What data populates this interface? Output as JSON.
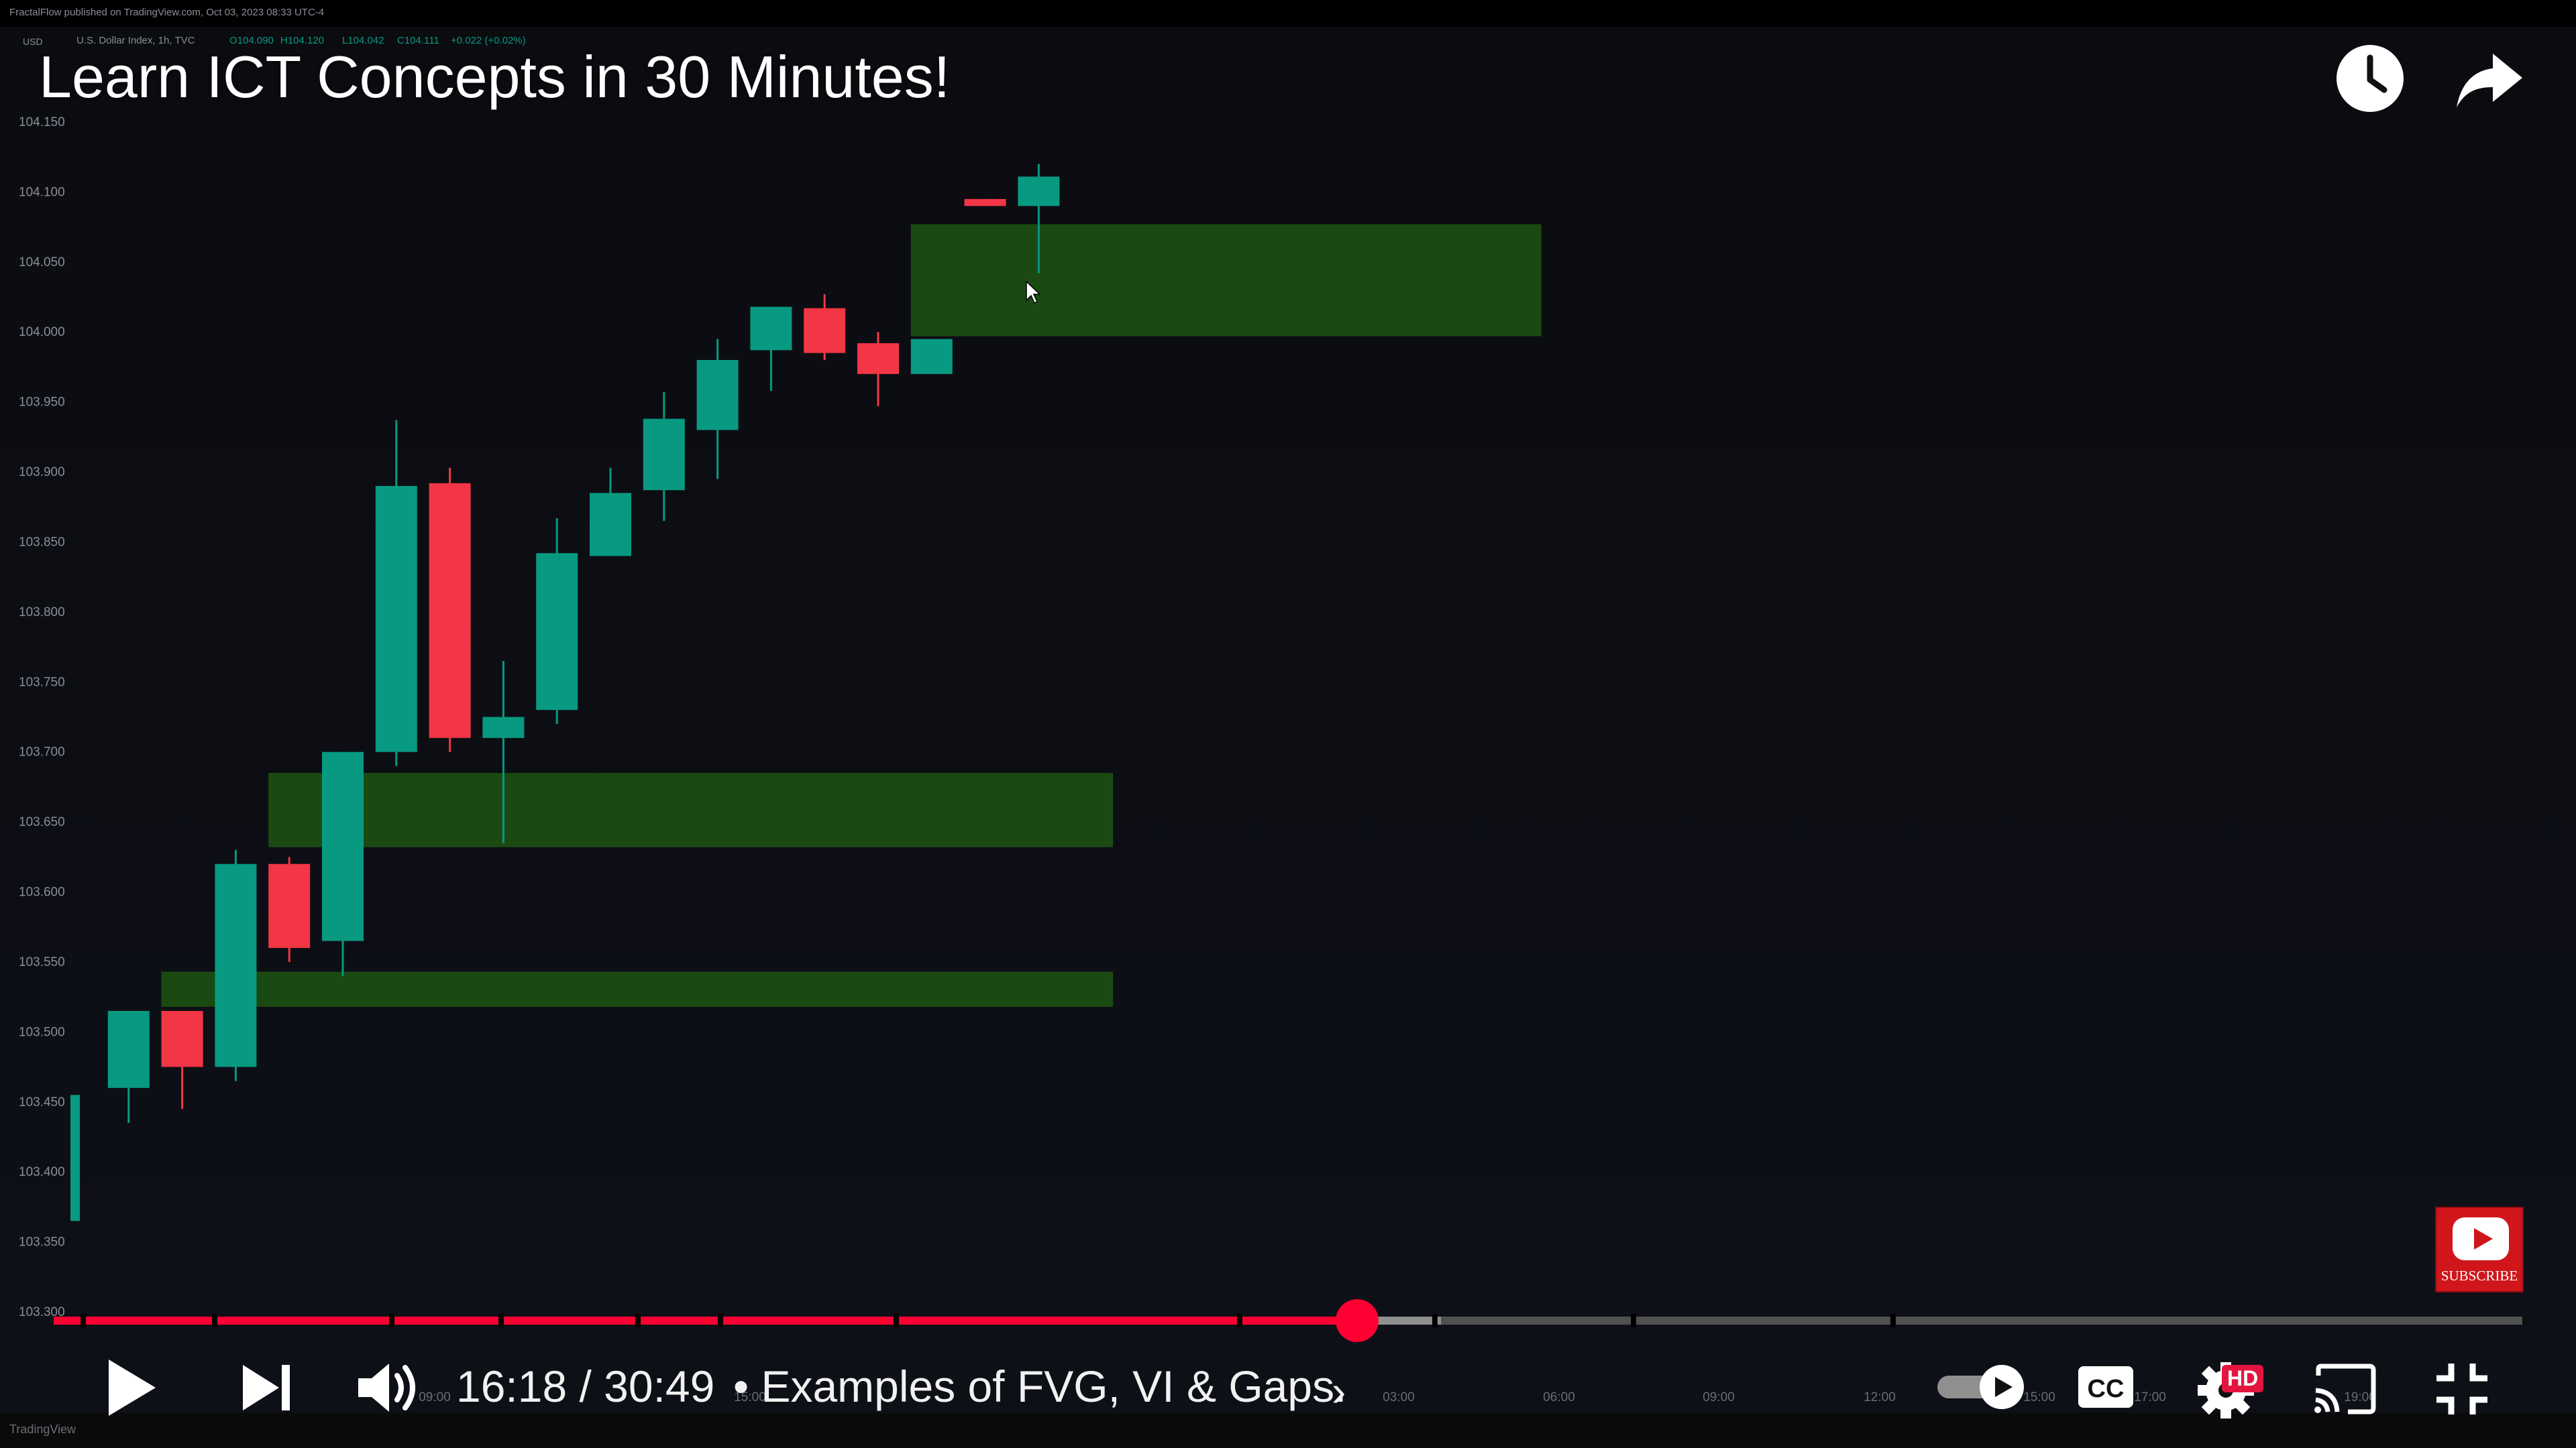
{
  "tradingview": {
    "publish_note": "FractalFlow published on TradingView.com, Oct 03, 2023 08:33 UTC-4",
    "currency": "USD",
    "symbol_line": "U.S. Dollar Index, 1h, TVC",
    "ohlc": [
      "O104.090",
      "H104.120",
      "L104.042",
      "C104.111",
      "+0.022 (+0.02%)"
    ],
    "footer_logo": "TradingView"
  },
  "video": {
    "title": "Learn ICT Concepts in 30 Minutes!",
    "watch_later_icon": "clock-icon",
    "share_icon": "share-arrow-icon",
    "subscribe_label": "SUBSCRIBE"
  },
  "player": {
    "current_time": "16:18",
    "duration": "30:49",
    "time_display": "16:18 / 30:49",
    "chapter": "• Examples of FVG, VI & Gaps.",
    "chapter_chevron": "›",
    "hd_label": "HD",
    "progress_fraction": 0.528,
    "buffered_fraction": 0.562,
    "icons": [
      "play-icon",
      "next-icon",
      "volume-icon",
      "autoplay-toggle",
      "captions-icon",
      "settings-icon",
      "cast-icon",
      "exit-fullscreen-icon"
    ],
    "colors": {
      "played": "#ff0033",
      "buffered": "#8f8f8f",
      "track": "#5a5a5a"
    }
  },
  "chart_data": {
    "type": "candlestick",
    "y_ticks": [
      "104.150",
      "104.100",
      "104.050",
      "104.000",
      "103.950",
      "103.900",
      "103.850",
      "103.800",
      "103.750",
      "103.700",
      "103.650",
      "103.600",
      "103.550",
      "103.500",
      "103.450",
      "103.400",
      "103.350",
      "103.300"
    ],
    "ylim": [
      103.3,
      104.15
    ],
    "x_ticks": [
      "09:00",
      "15:00",
      "03:00",
      "06:00",
      "09:00",
      "12:00",
      "15:00",
      "17:00",
      "19:00"
    ],
    "candles": [
      {
        "o": 103.365,
        "h": 103.455,
        "l": 103.365,
        "c": 103.455
      },
      {
        "o": 103.46,
        "h": 103.515,
        "l": 103.435,
        "c": 103.515
      },
      {
        "o": 103.515,
        "h": 103.515,
        "l": 103.445,
        "c": 103.475
      },
      {
        "o": 103.475,
        "h": 103.63,
        "l": 103.465,
        "c": 103.62
      },
      {
        "o": 103.62,
        "h": 103.625,
        "l": 103.55,
        "c": 103.56
      },
      {
        "o": 103.565,
        "h": 103.7,
        "l": 103.54,
        "c": 103.7
      },
      {
        "o": 103.7,
        "h": 103.937,
        "l": 103.69,
        "c": 103.89
      },
      {
        "o": 103.892,
        "h": 103.903,
        "l": 103.7,
        "c": 103.71
      },
      {
        "o": 103.71,
        "h": 103.765,
        "l": 103.635,
        "c": 103.725
      },
      {
        "o": 103.73,
        "h": 103.867,
        "l": 103.72,
        "c": 103.842
      },
      {
        "o": 103.84,
        "h": 103.903,
        "l": 103.84,
        "c": 103.885
      },
      {
        "o": 103.887,
        "h": 103.957,
        "l": 103.865,
        "c": 103.938
      },
      {
        "o": 103.93,
        "h": 103.995,
        "l": 103.895,
        "c": 103.98
      },
      {
        "o": 103.987,
        "h": 104.017,
        "l": 103.958,
        "c": 104.018
      },
      {
        "o": 104.017,
        "h": 104.027,
        "l": 103.98,
        "c": 103.985
      },
      {
        "o": 103.992,
        "h": 104.0,
        "l": 103.947,
        "c": 103.97
      },
      {
        "o": 103.97,
        "h": 103.995,
        "l": 103.97,
        "c": 103.995
      },
      {
        "o": 104.095,
        "h": 104.095,
        "l": 104.09,
        "c": 104.09
      },
      {
        "o": 104.09,
        "h": 104.12,
        "l": 104.042,
        "c": 104.111
      }
    ],
    "zones": [
      {
        "top": 104.077,
        "bottom": 103.997,
        "from": 16,
        "to": 27
      },
      {
        "top": 103.685,
        "bottom": 103.632,
        "from": 4,
        "to": 19
      },
      {
        "top": 103.543,
        "bottom": 103.518,
        "from": 2,
        "to": 19
      }
    ],
    "colors": {
      "up": "#089981",
      "down": "#f23645",
      "zone": "#1a4a12",
      "grid": "#0f1218"
    }
  }
}
